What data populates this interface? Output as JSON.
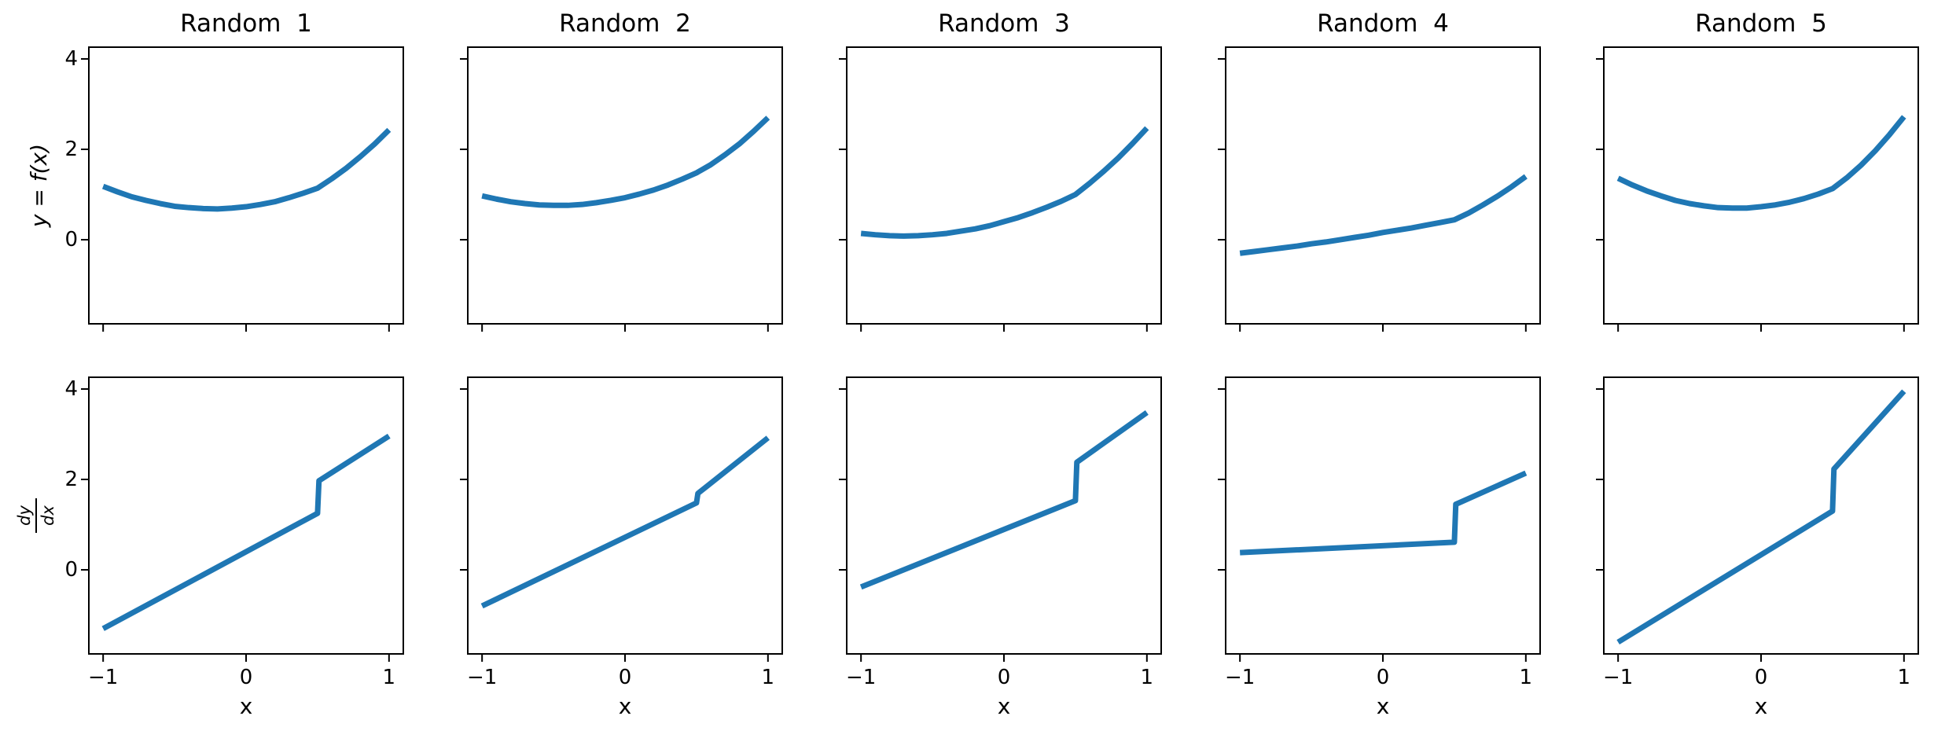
{
  "figure": {
    "background": "#ffffff",
    "axis_color": "#000000",
    "line_color": "#1f77b4",
    "line_width": 7
  },
  "labels": {
    "ylabel_top": "y = f(x)",
    "dydx_numerator": "dy",
    "dydx_denominator": "dx",
    "xlabel": "x"
  },
  "chart_data": {
    "type": "line",
    "layout": "2 rows x 5 columns, shared x and y axes",
    "xlim": [
      -1.1,
      1.1
    ],
    "ylim": [
      -1.86,
      4.26
    ],
    "x_ticks": [
      -1,
      0,
      1
    ],
    "x_tick_labels": [
      "−1",
      "0",
      "1"
    ],
    "y_ticks": [
      4,
      2,
      0
    ],
    "y_tick_labels": [
      "4",
      "2",
      "0"
    ],
    "xlabel": "x",
    "ylabel_top_row": "y = f(x)",
    "ylabel_bottom_row": "dy/dx",
    "grid": false,
    "legend": false,
    "line_color": "#1f77b4",
    "panels": [
      {
        "title": "Random  1",
        "f": {
          "x": [
            -1.0,
            -0.9,
            -0.8,
            -0.7,
            -0.6,
            -0.5,
            -0.4,
            -0.3,
            -0.2,
            -0.1,
            0.0,
            0.1,
            0.2,
            0.3,
            0.4,
            0.5,
            0.6,
            0.7,
            0.8,
            0.9,
            1.0
          ],
          "y": [
            1.18,
            1.06,
            0.95,
            0.87,
            0.8,
            0.74,
            0.71,
            0.69,
            0.68,
            0.7,
            0.73,
            0.78,
            0.84,
            0.93,
            1.03,
            1.14,
            1.35,
            1.58,
            1.84,
            2.12,
            2.43
          ]
        },
        "dfdx": {
          "x": [
            -1.0,
            0.5,
            0.51,
            1.0
          ],
          "y": [
            -1.3,
            1.25,
            1.97,
            2.96
          ]
        }
      },
      {
        "title": "Random  2",
        "f": {
          "x": [
            -1.0,
            -0.9,
            -0.8,
            -0.7,
            -0.6,
            -0.5,
            -0.4,
            -0.3,
            -0.2,
            -0.1,
            0.0,
            0.1,
            0.2,
            0.3,
            0.4,
            0.5,
            0.6,
            0.7,
            0.8,
            0.9,
            1.0
          ],
          "y": [
            0.97,
            0.9,
            0.84,
            0.8,
            0.77,
            0.76,
            0.76,
            0.78,
            0.82,
            0.87,
            0.93,
            1.01,
            1.1,
            1.21,
            1.34,
            1.48,
            1.66,
            1.88,
            2.12,
            2.4,
            2.7
          ]
        },
        "dfdx": {
          "x": [
            -1.0,
            0.5,
            0.51,
            1.0
          ],
          "y": [
            -0.8,
            1.48,
            1.69,
            2.92
          ]
        }
      },
      {
        "title": "Random  3",
        "f": {
          "x": [
            -1.0,
            -0.9,
            -0.8,
            -0.7,
            -0.6,
            -0.5,
            -0.4,
            -0.3,
            -0.2,
            -0.1,
            0.0,
            0.1,
            0.2,
            0.3,
            0.4,
            0.5,
            0.6,
            0.7,
            0.8,
            0.9,
            1.0
          ],
          "y": [
            0.14,
            0.11,
            0.09,
            0.08,
            0.09,
            0.11,
            0.14,
            0.19,
            0.24,
            0.31,
            0.4,
            0.49,
            0.6,
            0.72,
            0.85,
            1.0,
            1.25,
            1.52,
            1.81,
            2.13,
            2.47
          ]
        },
        "dfdx": {
          "x": [
            -1.0,
            0.5,
            0.51,
            1.0
          ],
          "y": [
            -0.38,
            1.53,
            2.38,
            3.48
          ]
        }
      },
      {
        "title": "Random  4",
        "f": {
          "x": [
            -1.0,
            -0.9,
            -0.8,
            -0.7,
            -0.6,
            -0.5,
            -0.4,
            -0.3,
            -0.2,
            -0.1,
            0.0,
            0.1,
            0.2,
            0.3,
            0.4,
            0.5,
            0.6,
            0.7,
            0.8,
            0.9,
            1.0
          ],
          "y": [
            -0.3,
            -0.26,
            -0.22,
            -0.18,
            -0.14,
            -0.09,
            -0.05,
            0.0,
            0.05,
            0.1,
            0.16,
            0.21,
            0.26,
            0.32,
            0.38,
            0.44,
            0.59,
            0.77,
            0.96,
            1.17,
            1.4
          ]
        },
        "dfdx": {
          "x": [
            -1.0,
            0.5,
            0.51,
            1.0
          ],
          "y": [
            0.38,
            0.61,
            1.45,
            2.14
          ]
        }
      },
      {
        "title": "Random  5",
        "f": {
          "x": [
            -1.0,
            -0.9,
            -0.8,
            -0.7,
            -0.6,
            -0.5,
            -0.4,
            -0.3,
            -0.2,
            -0.1,
            0.0,
            0.1,
            0.2,
            0.3,
            0.4,
            0.5,
            0.6,
            0.7,
            0.8,
            0.9,
            1.0
          ],
          "y": [
            1.36,
            1.21,
            1.08,
            0.97,
            0.87,
            0.8,
            0.75,
            0.71,
            0.7,
            0.7,
            0.73,
            0.77,
            0.83,
            0.91,
            1.01,
            1.13,
            1.37,
            1.65,
            1.97,
            2.33,
            2.72
          ]
        },
        "dfdx": {
          "x": [
            -1.0,
            0.5,
            0.51,
            1.0
          ],
          "y": [
            -1.6,
            1.3,
            2.23,
            3.95
          ]
        }
      }
    ]
  }
}
